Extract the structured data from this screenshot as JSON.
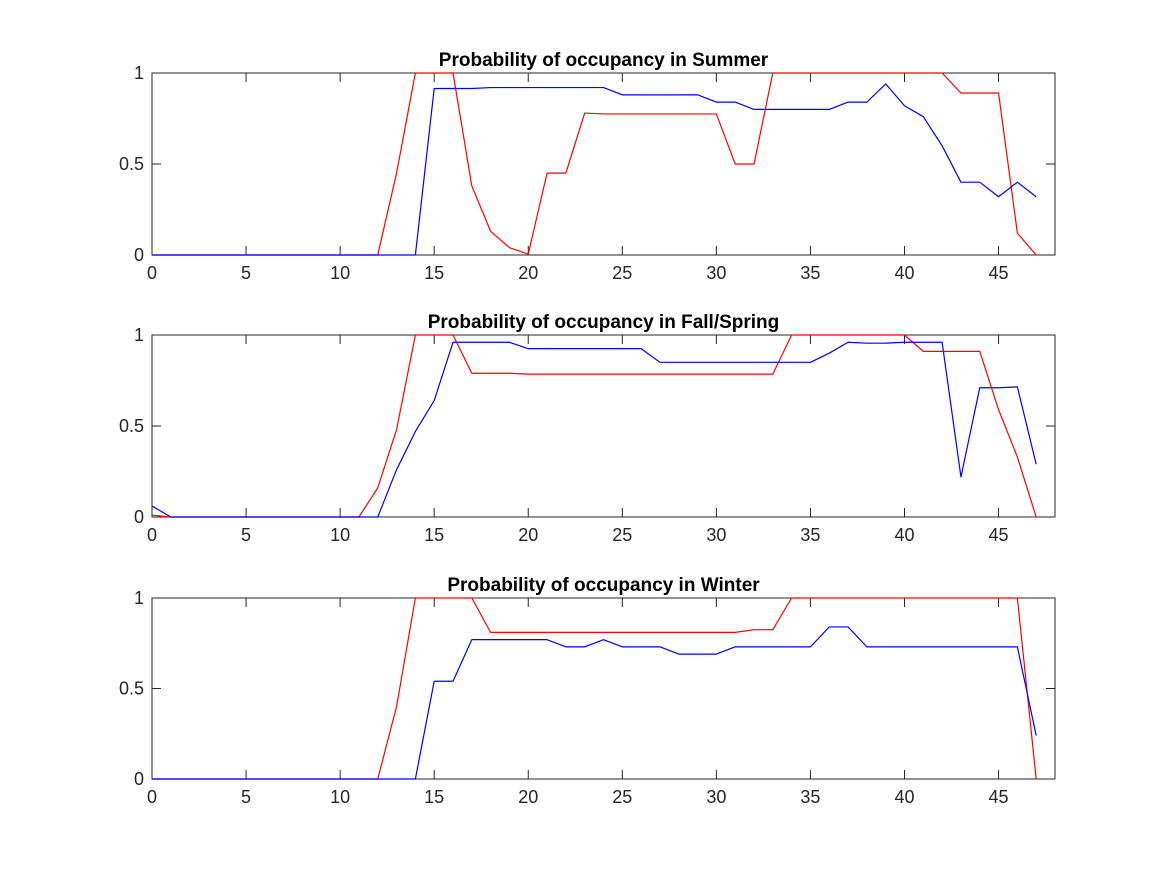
{
  "chart_data": [
    {
      "type": "line",
      "title": "Probability of occupancy in Summer",
      "xlim": [
        0,
        48
      ],
      "ylim": [
        0,
        1
      ],
      "xticks": [
        0,
        5,
        10,
        15,
        20,
        25,
        30,
        35,
        40,
        45
      ],
      "xtick_labels": [
        "0",
        "5",
        "10",
        "15",
        "20",
        "25",
        "30",
        "35",
        "40",
        "45"
      ],
      "yticks": [
        0,
        0.5,
        1
      ],
      "ytick_labels": [
        "0",
        "0.5",
        "1"
      ],
      "grid": false,
      "legend": "none",
      "x": [
        0,
        1,
        2,
        3,
        4,
        5,
        6,
        7,
        8,
        9,
        10,
        11,
        12,
        13,
        14,
        15,
        16,
        17,
        18,
        19,
        20,
        21,
        22,
        23,
        24,
        25,
        26,
        27,
        28,
        29,
        30,
        31,
        32,
        33,
        34,
        35,
        36,
        37,
        38,
        39,
        40,
        41,
        42,
        43,
        44,
        45,
        46,
        47
      ],
      "series": [
        {
          "color": "#ff0000",
          "values": [
            0,
            0,
            0,
            0,
            0,
            0,
            0,
            0,
            0,
            0,
            0,
            0,
            0,
            0.45,
            1,
            1,
            1,
            0.38,
            0.13,
            0.04,
            0.005,
            0.45,
            0.45,
            0.78,
            0.775,
            0.775,
            0.775,
            0.775,
            0.775,
            0.775,
            0.775,
            0.5,
            0.5,
            1,
            1,
            1,
            1,
            1,
            1,
            1,
            1,
            1,
            1,
            0.89,
            0.89,
            0.89,
            0.12,
            0
          ]
        },
        {
          "color": "#0000ff",
          "values": [
            0,
            0,
            0,
            0,
            0,
            0,
            0,
            0,
            0,
            0,
            0,
            0,
            0,
            0,
            0,
            0.915,
            0.915,
            0.915,
            0.92,
            0.92,
            0.92,
            0.92,
            0.92,
            0.92,
            0.92,
            0.88,
            0.88,
            0.88,
            0.88,
            0.88,
            0.84,
            0.84,
            0.8,
            0.8,
            0.8,
            0.8,
            0.8,
            0.84,
            0.84,
            0.94,
            0.82,
            0.76,
            0.6,
            0.4,
            0.4,
            0.32,
            0.4,
            0.32
          ]
        }
      ]
    },
    {
      "type": "line",
      "title": "Probability of occupancy in Fall/Spring",
      "xlim": [
        0,
        48
      ],
      "ylim": [
        0,
        1
      ],
      "xticks": [
        0,
        5,
        10,
        15,
        20,
        25,
        30,
        35,
        40,
        45
      ],
      "xtick_labels": [
        "0",
        "5",
        "10",
        "15",
        "20",
        "25",
        "30",
        "35",
        "40",
        "45"
      ],
      "yticks": [
        0,
        0.5,
        1
      ],
      "ytick_labels": [
        "0",
        "0.5",
        "1"
      ],
      "grid": false,
      "legend": "none",
      "x": [
        0,
        1,
        2,
        3,
        4,
        5,
        6,
        7,
        8,
        9,
        10,
        11,
        12,
        13,
        14,
        15,
        16,
        17,
        18,
        19,
        20,
        21,
        22,
        23,
        24,
        25,
        26,
        27,
        28,
        29,
        30,
        31,
        32,
        33,
        34,
        35,
        36,
        37,
        38,
        39,
        40,
        41,
        42,
        43,
        44,
        45,
        46,
        47
      ],
      "series": [
        {
          "color": "#ff0000",
          "values": [
            0.01,
            0,
            0,
            0,
            0,
            0,
            0,
            0,
            0,
            0,
            0,
            0,
            0.16,
            0.48,
            1,
            1,
            1,
            0.79,
            0.79,
            0.79,
            0.785,
            0.785,
            0.785,
            0.785,
            0.785,
            0.785,
            0.785,
            0.785,
            0.785,
            0.785,
            0.785,
            0.785,
            0.785,
            0.785,
            1,
            1,
            1,
            1,
            1,
            1,
            1,
            0.91,
            0.91,
            0.91,
            0.91,
            0.59,
            0.33,
            0
          ]
        },
        {
          "color": "#0000ff",
          "values": [
            0.06,
            0,
            0,
            0,
            0,
            0,
            0,
            0,
            0,
            0,
            0,
            0,
            0,
            0.26,
            0.47,
            0.64,
            0.96,
            0.96,
            0.96,
            0.96,
            0.925,
            0.925,
            0.925,
            0.925,
            0.925,
            0.925,
            0.925,
            0.85,
            0.85,
            0.85,
            0.85,
            0.85,
            0.85,
            0.85,
            0.85,
            0.85,
            0.9,
            0.96,
            0.955,
            0.955,
            0.96,
            0.96,
            0.96,
            0.22,
            0.71,
            0.71,
            0.715,
            0.29
          ]
        }
      ]
    },
    {
      "type": "line",
      "title": "Probability of occupancy in Winter",
      "xlim": [
        0,
        48
      ],
      "ylim": [
        0,
        1
      ],
      "xticks": [
        0,
        5,
        10,
        15,
        20,
        25,
        30,
        35,
        40,
        45
      ],
      "xtick_labels": [
        "0",
        "5",
        "10",
        "15",
        "20",
        "25",
        "30",
        "35",
        "40",
        "45"
      ],
      "yticks": [
        0,
        0.5,
        1
      ],
      "ytick_labels": [
        "0",
        "0.5",
        "1"
      ],
      "grid": false,
      "legend": "none",
      "x": [
        0,
        1,
        2,
        3,
        4,
        5,
        6,
        7,
        8,
        9,
        10,
        11,
        12,
        13,
        14,
        15,
        16,
        17,
        18,
        19,
        20,
        21,
        22,
        23,
        24,
        25,
        26,
        27,
        28,
        29,
        30,
        31,
        32,
        33,
        34,
        35,
        36,
        37,
        38,
        39,
        40,
        41,
        42,
        43,
        44,
        45,
        46,
        47
      ],
      "series": [
        {
          "color": "#ff0000",
          "values": [
            0,
            0,
            0,
            0,
            0,
            0,
            0,
            0,
            0,
            0,
            0,
            0,
            0,
            0.4,
            1,
            1,
            1,
            1,
            0.81,
            0.81,
            0.81,
            0.81,
            0.81,
            0.81,
            0.81,
            0.81,
            0.81,
            0.81,
            0.81,
            0.81,
            0.81,
            0.81,
            0.825,
            0.825,
            1,
            1,
            1,
            1,
            1,
            1,
            1,
            1,
            1,
            1,
            1,
            1,
            1,
            0
          ]
        },
        {
          "color": "#0000ff",
          "values": [
            0,
            0,
            0,
            0,
            0,
            0,
            0,
            0,
            0,
            0,
            0,
            0,
            0,
            0,
            0,
            0.54,
            0.54,
            0.77,
            0.77,
            0.77,
            0.77,
            0.77,
            0.73,
            0.73,
            0.77,
            0.73,
            0.73,
            0.73,
            0.69,
            0.69,
            0.69,
            0.73,
            0.73,
            0.73,
            0.73,
            0.73,
            0.84,
            0.84,
            0.73,
            0.73,
            0.73,
            0.73,
            0.73,
            0.73,
            0.73,
            0.73,
            0.73,
            0.24
          ]
        }
      ]
    }
  ]
}
